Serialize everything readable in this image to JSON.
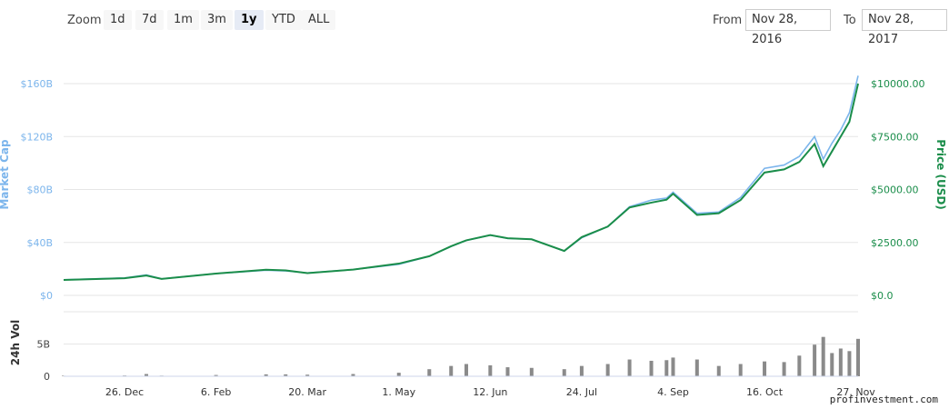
{
  "toolbar": {
    "zoom_label": "Zoom",
    "zoom_buttons": [
      "1d",
      "7d",
      "1m",
      "3m",
      "1y",
      "YTD",
      "ALL"
    ],
    "active_zoom": "1y",
    "from_label": "From",
    "from_value": "Nov 28, 2016",
    "to_label": "To",
    "to_value": "Nov 28, 2017"
  },
  "watermark": "profinvestment.com",
  "chart_data": {
    "type": "line",
    "left_axis": {
      "label": "Market Cap",
      "ticks": [
        "$0",
        "$40B",
        "$80B",
        "$120B",
        "$160B"
      ],
      "ylim": [
        0,
        160
      ],
      "unit": "B USD"
    },
    "right_axis": {
      "label": "Price (USD)",
      "ticks": [
        "$0.0",
        "$2500.00",
        "$5000.00",
        "$7500.00",
        "$10000.00"
      ],
      "ylim": [
        0,
        10000
      ]
    },
    "volume_axis": {
      "label": "24h Vol",
      "ticks": [
        "0",
        "5B"
      ]
    },
    "x_tick_labels": [
      "26. Dec",
      "6. Feb",
      "20. Mar",
      "1. May",
      "12. Jun",
      "24. Jul",
      "4. Sep",
      "16. Oct",
      "27. Nov"
    ],
    "x": [
      "2016-11-28",
      "2016-12-26",
      "2017-01-05",
      "2017-01-12",
      "2017-02-06",
      "2017-03-01",
      "2017-03-10",
      "2017-03-20",
      "2017-04-10",
      "2017-05-01",
      "2017-05-15",
      "2017-05-25",
      "2017-06-01",
      "2017-06-12",
      "2017-06-20",
      "2017-07-01",
      "2017-07-16",
      "2017-07-24",
      "2017-08-05",
      "2017-08-15",
      "2017-08-25",
      "2017-09-01",
      "2017-09-04",
      "2017-09-15",
      "2017-09-25",
      "2017-10-05",
      "2017-10-16",
      "2017-10-25",
      "2017-11-01",
      "2017-11-08",
      "2017-11-12",
      "2017-11-16",
      "2017-11-20",
      "2017-11-24",
      "2017-11-28"
    ],
    "series": [
      {
        "name": "Market Cap",
        "color": "#7cb5ec",
        "values": [
          11.8,
          13.2,
          15.5,
          12.5,
          16.5,
          19.0,
          18.5,
          17.0,
          19.5,
          23.5,
          29.5,
          37.0,
          41.5,
          45.5,
          43.0,
          42.5,
          33.5,
          43.5,
          52.0,
          67.0,
          72.0,
          73.5,
          78.0,
          62.0,
          63.0,
          74.0,
          96.0,
          98.5,
          105.0,
          120.0,
          103.0,
          115.0,
          125.0,
          138.0,
          166.0
        ]
      },
      {
        "name": "Price (USD)",
        "color": "#1a8d4a",
        "values": [
          730,
          810,
          940,
          780,
          1030,
          1210,
          1180,
          1050,
          1220,
          1500,
          1850,
          2320,
          2600,
          2850,
          2700,
          2650,
          2100,
          2750,
          3250,
          4150,
          4380,
          4520,
          4800,
          3800,
          3880,
          4500,
          5800,
          5950,
          6300,
          7150,
          6100,
          6800,
          7500,
          8200,
          10000
        ]
      }
    ],
    "volume_b": [
      0.08,
      0.12,
      0.35,
      0.1,
      0.2,
      0.3,
      0.3,
      0.25,
      0.35,
      0.55,
      1.1,
      1.6,
      1.9,
      1.7,
      1.4,
      1.3,
      1.1,
      1.6,
      1.9,
      2.6,
      2.4,
      2.5,
      2.9,
      2.6,
      1.6,
      1.9,
      2.3,
      2.2,
      3.2,
      4.9,
      6.1,
      3.6,
      4.3,
      3.9,
      5.8
    ],
    "grid": true,
    "legend": "none"
  }
}
